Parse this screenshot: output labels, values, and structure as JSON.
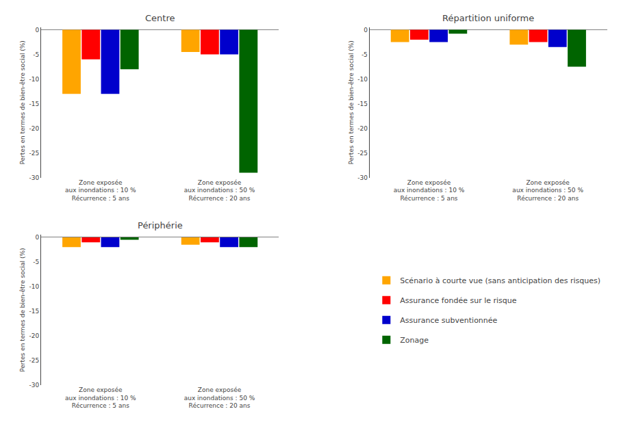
{
  "chart_data": [
    {
      "type": "bar",
      "title": "Centre",
      "categories": [
        "Zone exposée\naux inondations : 10 %\nRécurrence : 5 ans",
        "Zone exposée\naux inondations : 50 %\nRécurrence : 20 ans"
      ],
      "series": [
        {
          "name": "Scénario à courte vue (sans anticipation des risques)",
          "color": "#FFA500",
          "values": [
            -13.0,
            -4.5
          ]
        },
        {
          "name": "Assurance fondée sur le risque",
          "color": "#FF0000",
          "values": [
            -6.0,
            -5.0
          ]
        },
        {
          "name": "Assurance subventionnée",
          "color": "#0000CC",
          "values": [
            -13.0,
            -5.0
          ]
        },
        {
          "name": "Zonage",
          "color": "#006400",
          "values": [
            -8.0,
            -29.0
          ]
        }
      ],
      "ylabel": "Pertes en termes de bien-être social (%)",
      "ylim": [
        -30,
        0.5
      ],
      "yticks": [
        0,
        -5,
        -10,
        -15,
        -20,
        -25,
        -30
      ],
      "grid": false,
      "legend": "lower right"
    },
    {
      "type": "bar",
      "title": "Répartition uniforme",
      "categories": [
        "Zone exposée\naux inondations : 10 %\nRécurrence : 5 ans",
        "Zone exposée\naux inondations : 50 %\nRécurrence : 20 ans"
      ],
      "series": [
        {
          "name": "Scénario à courte vue (sans anticipation des risques)",
          "color": "#FFA500",
          "values": [
            -2.5,
            -3.0
          ]
        },
        {
          "name": "Assurance fondée sur le risque",
          "color": "#FF0000",
          "values": [
            -2.0,
            -2.5
          ]
        },
        {
          "name": "Assurance subventionnée",
          "color": "#0000CC",
          "values": [
            -2.5,
            -3.5
          ]
        },
        {
          "name": "Zonage",
          "color": "#006400",
          "values": [
            -0.8,
            -7.5
          ]
        }
      ],
      "ylabel": "Pertes en termes de bien-être social (%)",
      "ylim": [
        -30,
        0.5
      ],
      "yticks": [
        0,
        -5,
        -10,
        -15,
        -20,
        -25,
        -30
      ],
      "grid": false,
      "legend": "lower right"
    },
    {
      "type": "bar",
      "title": "Périphérie",
      "categories": [
        "Zone exposée\naux inondations : 10 %\nRécurrence : 5 ans",
        "Zone exposée\naux inondations : 50 %\nRécurrence : 20 ans"
      ],
      "series": [
        {
          "name": "Scénario à courte vue (sans anticipation des risques)",
          "color": "#FFA500",
          "values": [
            -2.0,
            -1.5
          ]
        },
        {
          "name": "Assurance fondée sur le risque",
          "color": "#FF0000",
          "values": [
            -1.0,
            -1.0
          ]
        },
        {
          "name": "Assurance subventionnée",
          "color": "#0000CC",
          "values": [
            -2.0,
            -2.0
          ]
        },
        {
          "name": "Zonage",
          "color": "#006400",
          "values": [
            -0.5,
            -2.0
          ]
        }
      ],
      "ylabel": "Pertes en termes de bien-être social (%)",
      "ylim": [
        -30,
        0.5
      ],
      "yticks": [
        0,
        -5,
        -10,
        -15,
        -20,
        -25,
        -30
      ],
      "grid": false,
      "legend": "lower right"
    }
  ]
}
